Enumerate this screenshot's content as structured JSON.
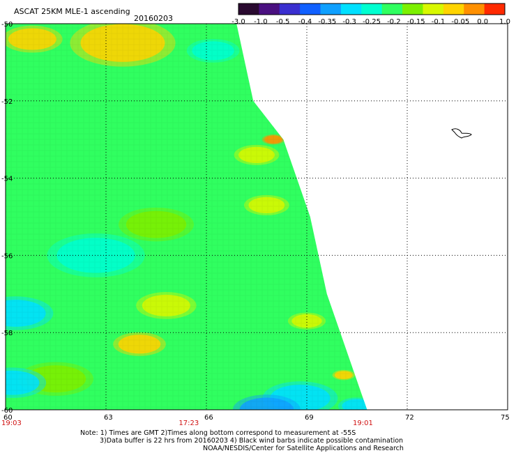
{
  "header": {
    "title": "ASCAT 25KM MLE-1 ascending",
    "date": "20160203"
  },
  "colorbar": {
    "labels": [
      "-3.0",
      "-1.0",
      "-0.5",
      "-0.4",
      "-0.35",
      "-0.3",
      "-0.25",
      "-0.2",
      "-0.15",
      "-0.1",
      "-0.05",
      "0.0",
      "1.0"
    ],
    "colors": [
      "#2a0a30",
      "#4a1080",
      "#3a2fd0",
      "#1060ff",
      "#0fa0ff",
      "#00e0ff",
      "#00ffd0",
      "#30ff60",
      "#7cf000",
      "#d8f800",
      "#ffd400",
      "#ff9000",
      "#ff2a00"
    ]
  },
  "chart_data": {
    "type": "heatmap",
    "title": "ASCAT 25KM MLE-1 ascending",
    "xlim": [
      60,
      75
    ],
    "ylim": [
      -60,
      -50
    ],
    "x_ticks": [
      "60",
      "63",
      "66",
      "69",
      "72",
      "75"
    ],
    "y_ticks": [
      "-50",
      "-52",
      "-54",
      "-56",
      "-58",
      "-60"
    ],
    "time_labels": [
      {
        "x": 60,
        "text": "19:03"
      },
      {
        "x": 65.3,
        "text": "17:23"
      },
      {
        "x": 70.5,
        "text": "19:01"
      }
    ],
    "swath_east_edge": [
      [
        -50,
        66.9
      ],
      [
        -52,
        67.4
      ],
      [
        -53,
        68.3
      ],
      [
        -55,
        69.1
      ],
      [
        -57,
        69.6
      ],
      [
        -59,
        70.4
      ],
      [
        -60,
        70.8
      ]
    ],
    "hotspots": [
      {
        "lon": 63.5,
        "lat": -50.5,
        "category": "-0.05",
        "radius_deg": 1.4
      },
      {
        "lon": 60.8,
        "lat": -50.4,
        "category": "-0.05",
        "radius_deg": 0.8
      },
      {
        "lon": 67.5,
        "lat": -53.4,
        "category": "-0.1",
        "radius_deg": 0.6
      },
      {
        "lon": 68.0,
        "lat": -53.0,
        "category": "0.0",
        "radius_deg": 0.3
      },
      {
        "lon": 67.8,
        "lat": -54.7,
        "category": "-0.1",
        "radius_deg": 0.6
      },
      {
        "lon": 64.0,
        "lat": -58.3,
        "category": "-0.05",
        "radius_deg": 0.7
      },
      {
        "lon": 64.8,
        "lat": -57.3,
        "category": "-0.1",
        "radius_deg": 0.8
      },
      {
        "lon": 69.0,
        "lat": -57.7,
        "category": "-0.1",
        "radius_deg": 0.5
      },
      {
        "lon": 70.1,
        "lat": -59.1,
        "category": "-0.05",
        "radius_deg": 0.3
      },
      {
        "lon": 61.5,
        "lat": -59.2,
        "category": "-0.15",
        "radius_deg": 1.0
      },
      {
        "lon": 64.5,
        "lat": -55.2,
        "category": "-0.15",
        "radius_deg": 1.0
      },
      {
        "lon": 62.7,
        "lat": -56.0,
        "category": "-0.25",
        "radius_deg": 1.3
      },
      {
        "lon": 60.3,
        "lat": -57.5,
        "category": "-0.3",
        "radius_deg": 1.0
      },
      {
        "lon": 60.2,
        "lat": -59.3,
        "category": "-0.3",
        "radius_deg": 0.9
      },
      {
        "lon": 66.2,
        "lat": -50.7,
        "category": "-0.25",
        "radius_deg": 0.7
      },
      {
        "lon": 67.8,
        "lat": -60.0,
        "category": "-0.35",
        "radius_deg": 0.9
      },
      {
        "lon": 68.8,
        "lat": -59.7,
        "category": "-0.3",
        "radius_deg": 1.0
      },
      {
        "lon": 70.5,
        "lat": -59.9,
        "category": "-0.3",
        "radius_deg": 0.5
      },
      {
        "lon": 66.6,
        "lat": -55.0,
        "category": "-0.2",
        "radius_deg": 0.7
      }
    ]
  },
  "footer": {
    "note1": "Note: 1) Times are GMT 2)Times along bottom correspond to measurement at -55S",
    "note2": "3)Data buffer is 22 hrs from 20160203 4) Black wind barbs indicate possible contamination",
    "note3": "NOAA/NESDIS/Center for Satellite Applications and Research"
  }
}
